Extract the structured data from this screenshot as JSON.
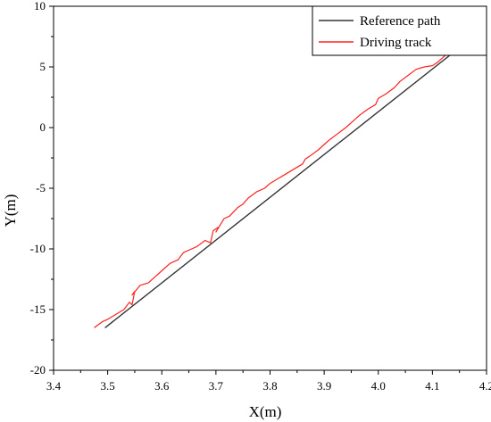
{
  "chart_data": {
    "type": "line",
    "title": "",
    "xlabel": "X(m)",
    "ylabel": "Y(m)",
    "xlim": [
      3.4,
      4.2
    ],
    "ylim": [
      -20,
      10
    ],
    "xticks": [
      3.4,
      3.5,
      3.6,
      3.7,
      3.8,
      3.9,
      4.0,
      4.1,
      4.2
    ],
    "xtick_labels": [
      "3.4",
      "3.5",
      "3.6",
      "3.7",
      "3.8",
      "3.9",
      "4.0",
      "4.1",
      "4.2"
    ],
    "yticks": [
      -20,
      -15,
      -10,
      -5,
      0,
      5,
      10
    ],
    "ytick_labels": [
      "-20",
      "-15",
      "-10",
      "-5",
      "0",
      "5",
      "10"
    ],
    "legend_position": "top-right",
    "grid": false,
    "series": [
      {
        "name": "Reference path",
        "color": "#333333",
        "x": [
          3.495,
          4.19
        ],
        "y": [
          -16.5,
          8.0
        ]
      },
      {
        "name": "Driving track",
        "color": "#ff2020",
        "x": [
          3.475,
          3.49,
          3.5,
          3.515,
          3.53,
          3.54,
          3.545,
          3.55,
          3.545,
          3.56,
          3.575,
          3.59,
          3.6,
          3.615,
          3.63,
          3.64,
          3.655,
          3.665,
          3.68,
          3.69,
          3.695,
          3.705,
          3.7,
          3.715,
          3.725,
          3.74,
          3.75,
          3.76,
          3.775,
          3.79,
          3.8,
          3.815,
          3.83,
          3.845,
          3.86,
          3.865,
          3.875,
          3.89,
          3.9,
          3.91,
          3.925,
          3.94,
          3.955,
          3.965,
          3.98,
          3.995,
          4.0,
          4.015,
          4.03,
          4.04,
          4.055,
          4.07,
          4.085,
          4.1,
          4.11,
          4.125,
          4.14,
          4.155,
          4.14,
          4.125,
          4.12,
          4.135,
          4.15,
          4.165,
          4.18,
          4.19
        ],
        "y": [
          -16.5,
          -16.0,
          -15.8,
          -15.4,
          -15.0,
          -14.4,
          -14.6,
          -13.5,
          -13.8,
          -13.0,
          -12.8,
          -12.2,
          -11.8,
          -11.2,
          -10.9,
          -10.3,
          -10.0,
          -9.8,
          -9.3,
          -9.5,
          -8.5,
          -8.2,
          -8.6,
          -7.5,
          -7.3,
          -6.6,
          -6.3,
          -5.8,
          -5.3,
          -5.0,
          -4.6,
          -4.2,
          -3.8,
          -3.4,
          -3.0,
          -2.6,
          -2.3,
          -1.8,
          -1.4,
          -1.0,
          -0.5,
          0.0,
          0.6,
          1.0,
          1.5,
          1.9,
          2.4,
          2.8,
          3.3,
          3.8,
          4.3,
          4.8,
          5.0,
          5.1,
          5.4,
          6.0,
          6.5,
          6.4,
          6.1,
          6.0,
          6.4,
          7.0,
          7.6,
          8.2,
          8.6,
          8.9
        ]
      }
    ]
  }
}
